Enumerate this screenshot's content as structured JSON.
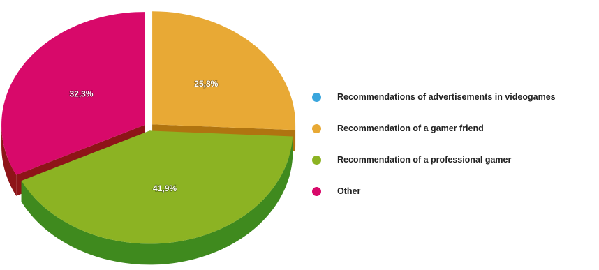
{
  "chart_data": {
    "type": "pie",
    "title": "",
    "unit": "%",
    "slices": [
      {
        "label": "Recommendations of advertisements in videogames",
        "value": 0.0,
        "value_label": "",
        "color": "#3aa6dd",
        "side_color": "#1f6f99"
      },
      {
        "label": "Recommendation of a gamer friend",
        "value": 25.8,
        "value_label": "25,8%",
        "color": "#e8a935",
        "side_color": "#b07410"
      },
      {
        "label": "Recommendation of a professional gamer",
        "value": 41.9,
        "value_label": "41,9%",
        "color": "#8cb323",
        "side_color": "#3f8a1e"
      },
      {
        "label": "Other",
        "value": 32.3,
        "value_label": "32,3%",
        "color": "#d8096a",
        "side_color": "#8e1418"
      }
    ],
    "legend_position": "right",
    "three_d": true,
    "exploded": true
  }
}
